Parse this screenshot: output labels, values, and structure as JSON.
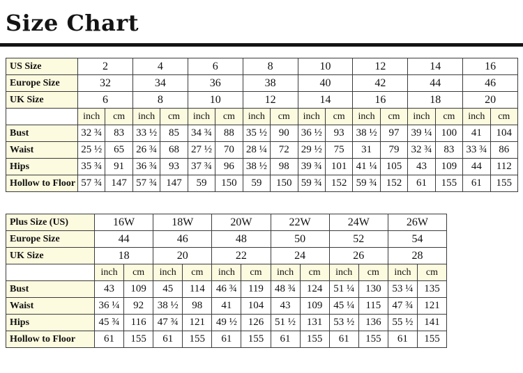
{
  "page": {
    "title": "Size Chart"
  },
  "colors": {
    "label_bg": "#FCFADF",
    "border": "#3A3A3A",
    "title": "#141414"
  },
  "chart_data": [
    {
      "type": "table",
      "name": "standard-sizes",
      "size_rows": [
        {
          "label": "US Size",
          "values": [
            "2",
            "4",
            "6",
            "8",
            "10",
            "12",
            "14",
            "16"
          ]
        },
        {
          "label": "Europe Size",
          "values": [
            "32",
            "34",
            "36",
            "38",
            "40",
            "42",
            "44",
            "46"
          ]
        },
        {
          "label": "UK Size",
          "values": [
            "6",
            "8",
            "10",
            "12",
            "14",
            "16",
            "18",
            "20"
          ]
        }
      ],
      "unit_labels": [
        "inch",
        "cm"
      ],
      "measure_rows": [
        {
          "label": "Bust",
          "pairs": [
            [
              "32 ¾",
              "83"
            ],
            [
              "33 ½",
              "85"
            ],
            [
              "34 ¾",
              "88"
            ],
            [
              "35 ½",
              "90"
            ],
            [
              "36 ½",
              "93"
            ],
            [
              "38 ½",
              "97"
            ],
            [
              "39 ¼",
              "100"
            ],
            [
              "41",
              "104"
            ]
          ]
        },
        {
          "label": "Waist",
          "pairs": [
            [
              "25 ½",
              "65"
            ],
            [
              "26 ¾",
              "68"
            ],
            [
              "27 ½",
              "70"
            ],
            [
              "28 ¼",
              "72"
            ],
            [
              "29 ½",
              "75"
            ],
            [
              "31",
              "79"
            ],
            [
              "32 ¾",
              "83"
            ],
            [
              "33 ¾",
              "86"
            ]
          ]
        },
        {
          "label": "Hips",
          "pairs": [
            [
              "35 ¾",
              "91"
            ],
            [
              "36 ¾",
              "93"
            ],
            [
              "37 ¾",
              "96"
            ],
            [
              "38 ½",
              "98"
            ],
            [
              "39 ¾",
              "101"
            ],
            [
              "41 ¼",
              "105"
            ],
            [
              "43",
              "109"
            ],
            [
              "44",
              "112"
            ]
          ]
        },
        {
          "label": "Hollow to Floor",
          "pairs": [
            [
              "57 ¾",
              "147"
            ],
            [
              "57 ¾",
              "147"
            ],
            [
              "59",
              "150"
            ],
            [
              "59",
              "150"
            ],
            [
              "59 ¾",
              "152"
            ],
            [
              "59 ¾",
              "152"
            ],
            [
              "61",
              "155"
            ],
            [
              "61",
              "155"
            ]
          ]
        }
      ]
    },
    {
      "type": "table",
      "name": "plus-sizes",
      "size_rows": [
        {
          "label": "Plus Size (US)",
          "values": [
            "16W",
            "18W",
            "20W",
            "22W",
            "24W",
            "26W"
          ]
        },
        {
          "label": "Europe Size",
          "values": [
            "44",
            "46",
            "48",
            "50",
            "52",
            "54"
          ]
        },
        {
          "label": "UK Size",
          "values": [
            "18",
            "20",
            "22",
            "24",
            "26",
            "28"
          ]
        }
      ],
      "unit_labels": [
        "inch",
        "cm"
      ],
      "measure_rows": [
        {
          "label": "Bust",
          "pairs": [
            [
              "43",
              "109"
            ],
            [
              "45",
              "114"
            ],
            [
              "46 ¾",
              "119"
            ],
            [
              "48 ¾",
              "124"
            ],
            [
              "51 ¼",
              "130"
            ],
            [
              "53 ¼",
              "135"
            ]
          ]
        },
        {
          "label": "Waist",
          "pairs": [
            [
              "36 ¼",
              "92"
            ],
            [
              "38 ½",
              "98"
            ],
            [
              "41",
              "104"
            ],
            [
              "43",
              "109"
            ],
            [
              "45 ¼",
              "115"
            ],
            [
              "47 ¾",
              "121"
            ]
          ]
        },
        {
          "label": "Hips",
          "pairs": [
            [
              "45 ¾",
              "116"
            ],
            [
              "47 ¾",
              "121"
            ],
            [
              "49 ½",
              "126"
            ],
            [
              "51 ½",
              "131"
            ],
            [
              "53 ½",
              "136"
            ],
            [
              "55 ½",
              "141"
            ]
          ]
        },
        {
          "label": "Hollow to Floor",
          "pairs": [
            [
              "61",
              "155"
            ],
            [
              "61",
              "155"
            ],
            [
              "61",
              "155"
            ],
            [
              "61",
              "155"
            ],
            [
              "61",
              "155"
            ],
            [
              "61",
              "155"
            ]
          ]
        }
      ]
    }
  ]
}
